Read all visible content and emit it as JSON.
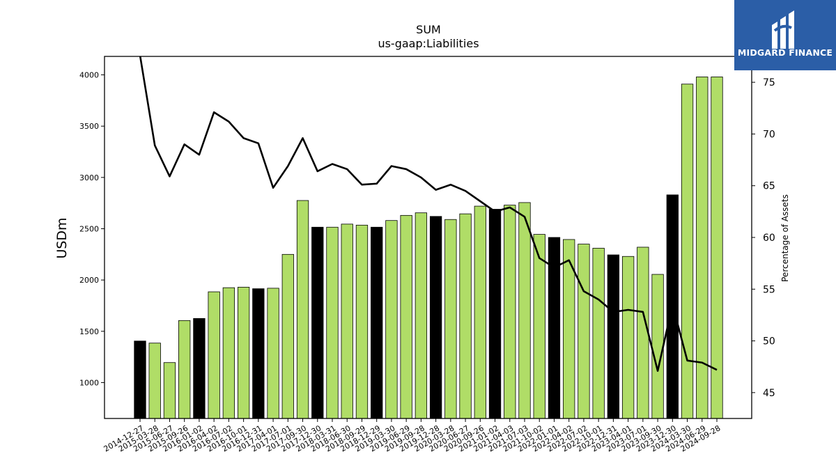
{
  "brand": {
    "name": "MIDGARD FINANCE",
    "color": "#2b5ea7"
  },
  "chart_data": {
    "type": "bar",
    "title": "SUM",
    "subtitle": "us-gaap:Liabilities",
    "ylabel": "USDm",
    "y2label": "Percentage of Assets",
    "ylim": [
      650,
      4180
    ],
    "y2lim": [
      42.5,
      77.5
    ],
    "yticks": [
      1000,
      1500,
      2000,
      2500,
      3000,
      3500,
      4000
    ],
    "y2ticks": [
      45,
      50,
      55,
      60,
      65,
      70,
      75
    ],
    "categories": [
      "2014-12-27",
      "2015-03-28",
      "2015-06-27",
      "2015-09-26",
      "2016-01-02",
      "2016-04-02",
      "2016-07-02",
      "2016-10-01",
      "2016-12-31",
      "2017-04-01",
      "2017-07-01",
      "2017-09-30",
      "2017-12-30",
      "2018-03-31",
      "2018-06-30",
      "2018-09-29",
      "2018-12-29",
      "2019-03-30",
      "2019-06-29",
      "2019-09-28",
      "2019-12-28",
      "2020-03-28",
      "2020-06-27",
      "2020-09-26",
      "2021-01-02",
      "2021-04-03",
      "2021-07-03",
      "2021-10-02",
      "2022-01-01",
      "2022-04-02",
      "2022-07-02",
      "2022-10-01",
      "2022-12-31",
      "2023-04-01",
      "2023-07-01",
      "2023-09-30",
      "2023-12-30",
      "2024-03-30",
      "2024-06-29",
      "2024-09-28"
    ],
    "series": [
      {
        "kind": "bar",
        "values": [
          1405,
          1385,
          1195,
          1605,
          1625,
          1885,
          1925,
          1930,
          1915,
          1920,
          2250,
          2775,
          2515,
          2515,
          2545,
          2535,
          2515,
          2580,
          2630,
          2655,
          2620,
          2590,
          2645,
          2720,
          2690,
          2730,
          2755,
          2445,
          2415,
          2395,
          2350,
          2310,
          2245,
          2230,
          2320,
          2055,
          2830,
          3910,
          3980,
          3980
        ],
        "quarter_end_flags": [
          1,
          0,
          0,
          0,
          1,
          0,
          0,
          0,
          1,
          0,
          0,
          0,
          1,
          0,
          0,
          0,
          1,
          0,
          0,
          0,
          1,
          0,
          0,
          0,
          1,
          0,
          0,
          0,
          1,
          0,
          0,
          0,
          1,
          0,
          0,
          0,
          1,
          0,
          0,
          0
        ]
      },
      {
        "kind": "line",
        "axis": "right",
        "values": [
          77.6,
          68.9,
          65.9,
          69.0,
          68.0,
          72.1,
          71.2,
          69.6,
          69.1,
          64.8,
          66.9,
          69.6,
          66.4,
          67.1,
          66.6,
          65.1,
          65.2,
          66.9,
          66.6,
          65.8,
          64.6,
          65.1,
          64.5,
          63.5,
          62.5,
          62.9,
          62.0,
          58.0,
          57.1,
          57.8,
          54.8,
          54.0,
          52.8,
          53.0,
          52.8,
          47.1,
          53.5,
          48.1,
          47.9,
          47.2
        ]
      }
    ],
    "colors": {
      "bar_default": "#b0dd67",
      "bar_highlight": "#000000",
      "line": "#000000"
    },
    "grid": false
  }
}
